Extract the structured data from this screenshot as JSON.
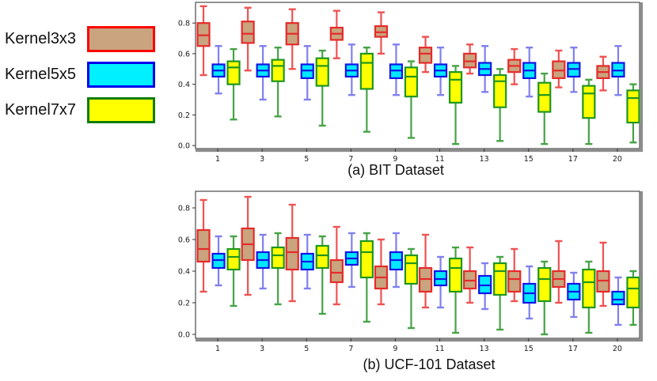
{
  "legend": {
    "items": [
      {
        "label": "Kernel3x3",
        "fill": "#C9A47E",
        "border": "#FF0000"
      },
      {
        "label": "Kernel5x5",
        "fill": "#00F0FF",
        "border": "#0000EE"
      },
      {
        "label": "Kernel7x7",
        "fill": "#FFFF00",
        "border": "#0E7D0E"
      }
    ]
  },
  "captions": {
    "a": "(a) BIT Dataset",
    "b": "(b) UCF-101 Dataset"
  },
  "chart_data": [
    {
      "id": "bit",
      "type": "box",
      "title": "(a) BIT Dataset",
      "xlabel": "",
      "ylabel": "",
      "grid": false,
      "legend_position": "outside-left",
      "categories": [
        "1",
        "3",
        "5",
        "7",
        "9",
        "11",
        "13",
        "15",
        "17",
        "20"
      ],
      "yticks": [
        0.0,
        0.2,
        0.4,
        0.6,
        0.8
      ],
      "ylim": [
        -0.02,
        0.935
      ],
      "box_order": [
        "whislo",
        "q1",
        "med",
        "q3",
        "whishi"
      ],
      "series": [
        {
          "name": "Kernel3x3",
          "fill": "#C9A47E",
          "edge": "#E62B2B",
          "whisker": "#EE5252",
          "boxes": [
            [
              0.46,
              0.65,
              0.72,
              0.8,
              0.91
            ],
            [
              0.49,
              0.67,
              0.73,
              0.81,
              0.9
            ],
            [
              0.5,
              0.66,
              0.73,
              0.8,
              0.89
            ],
            [
              0.57,
              0.69,
              0.73,
              0.77,
              0.88
            ],
            [
              0.6,
              0.71,
              0.74,
              0.78,
              0.87
            ],
            [
              0.48,
              0.54,
              0.6,
              0.64,
              0.71
            ],
            [
              0.47,
              0.51,
              0.55,
              0.6,
              0.66
            ],
            [
              0.4,
              0.48,
              0.52,
              0.56,
              0.63
            ],
            [
              0.38,
              0.44,
              0.49,
              0.55,
              0.62
            ],
            [
              0.36,
              0.44,
              0.48,
              0.52,
              0.58
            ]
          ]
        },
        {
          "name": "Kernel5x5",
          "fill": "#00E8FF",
          "edge": "#1414E6",
          "whisker": "#8080EE",
          "boxes": [
            [
              0.34,
              0.45,
              0.49,
              0.53,
              0.65
            ],
            [
              0.3,
              0.45,
              0.49,
              0.53,
              0.65
            ],
            [
              0.3,
              0.44,
              0.49,
              0.53,
              0.65
            ],
            [
              0.33,
              0.45,
              0.49,
              0.53,
              0.66
            ],
            [
              0.33,
              0.44,
              0.49,
              0.53,
              0.66
            ],
            [
              0.33,
              0.45,
              0.49,
              0.53,
              0.64
            ],
            [
              0.35,
              0.46,
              0.5,
              0.54,
              0.65
            ],
            [
              0.32,
              0.44,
              0.49,
              0.54,
              0.64
            ],
            [
              0.35,
              0.45,
              0.5,
              0.54,
              0.64
            ],
            [
              0.33,
              0.45,
              0.49,
              0.54,
              0.65
            ]
          ]
        },
        {
          "name": "Kernel7x7",
          "fill": "#FFFF00",
          "edge": "#1F961F",
          "whisker": "#46A346",
          "boxes": [
            [
              0.17,
              0.4,
              0.51,
              0.55,
              0.63
            ],
            [
              0.19,
              0.42,
              0.52,
              0.56,
              0.64
            ],
            [
              0.13,
              0.39,
              0.52,
              0.57,
              0.62
            ],
            [
              0.09,
              0.37,
              0.54,
              0.6,
              0.64
            ],
            [
              0.05,
              0.32,
              0.45,
              0.51,
              0.55
            ],
            [
              0.01,
              0.28,
              0.43,
              0.48,
              0.52
            ],
            [
              0.03,
              0.25,
              0.42,
              0.46,
              0.5
            ],
            [
              0.01,
              0.22,
              0.33,
              0.41,
              0.47
            ],
            [
              0.01,
              0.18,
              0.34,
              0.39,
              0.43
            ],
            [
              0.02,
              0.15,
              0.31,
              0.36,
              0.4
            ]
          ]
        }
      ]
    },
    {
      "id": "ucf",
      "type": "box",
      "title": "(b) UCF-101 Dataset",
      "xlabel": "",
      "ylabel": "",
      "grid": false,
      "legend_position": "outside-left",
      "categories": [
        "1",
        "3",
        "5",
        "7",
        "9",
        "11",
        "13",
        "15",
        "17",
        "20"
      ],
      "yticks": [
        0.0,
        0.2,
        0.4,
        0.6,
        0.8
      ],
      "ylim": [
        -0.025,
        0.905
      ],
      "box_order": [
        "whislo",
        "q1",
        "med",
        "q3",
        "whishi"
      ],
      "series": [
        {
          "name": "Kernel3x3",
          "fill": "#C9A47E",
          "edge": "#E62B2B",
          "whisker": "#EE5252",
          "boxes": [
            [
              0.27,
              0.46,
              0.54,
              0.66,
              0.85
            ],
            [
              0.25,
              0.47,
              0.57,
              0.67,
              0.87
            ],
            [
              0.21,
              0.41,
              0.52,
              0.61,
              0.82
            ],
            [
              0.19,
              0.33,
              0.39,
              0.47,
              0.68
            ],
            [
              0.19,
              0.29,
              0.36,
              0.43,
              0.6
            ],
            [
              0.17,
              0.27,
              0.35,
              0.42,
              0.63
            ],
            [
              0.2,
              0.29,
              0.34,
              0.4,
              0.55
            ],
            [
              0.21,
              0.27,
              0.35,
              0.4,
              0.54
            ],
            [
              0.2,
              0.3,
              0.35,
              0.4,
              0.59
            ],
            [
              0.18,
              0.27,
              0.34,
              0.4,
              0.58
            ]
          ]
        },
        {
          "name": "Kernel5x5",
          "fill": "#00E8FF",
          "edge": "#1414E6",
          "whisker": "#8080EE",
          "boxes": [
            [
              0.31,
              0.42,
              0.47,
              0.51,
              0.62
            ],
            [
              0.29,
              0.42,
              0.47,
              0.52,
              0.63
            ],
            [
              0.29,
              0.41,
              0.46,
              0.51,
              0.63
            ],
            [
              0.3,
              0.44,
              0.48,
              0.52,
              0.64
            ],
            [
              0.3,
              0.41,
              0.47,
              0.52,
              0.64
            ],
            [
              0.17,
              0.31,
              0.35,
              0.4,
              0.49
            ],
            [
              0.16,
              0.26,
              0.31,
              0.37,
              0.45
            ],
            [
              0.1,
              0.2,
              0.26,
              0.32,
              0.43
            ],
            [
              0.11,
              0.22,
              0.27,
              0.32,
              0.39
            ],
            [
              0.06,
              0.19,
              0.22,
              0.27,
              0.36
            ]
          ]
        },
        {
          "name": "Kernel7x7",
          "fill": "#FFFF00",
          "edge": "#1F961F",
          "whisker": "#46A346",
          "boxes": [
            [
              0.18,
              0.41,
              0.49,
              0.54,
              0.62
            ],
            [
              0.19,
              0.42,
              0.5,
              0.55,
              0.64
            ],
            [
              0.13,
              0.42,
              0.5,
              0.56,
              0.62
            ],
            [
              0.08,
              0.36,
              0.52,
              0.59,
              0.64
            ],
            [
              0.04,
              0.32,
              0.45,
              0.5,
              0.54
            ],
            [
              0.01,
              0.27,
              0.42,
              0.48,
              0.55
            ],
            [
              0.03,
              0.25,
              0.4,
              0.45,
              0.49
            ],
            [
              0.0,
              0.21,
              0.35,
              0.42,
              0.46
            ],
            [
              0.01,
              0.17,
              0.33,
              0.41,
              0.46
            ],
            [
              0.06,
              0.17,
              0.29,
              0.36,
              0.4
            ]
          ]
        }
      ]
    }
  ]
}
